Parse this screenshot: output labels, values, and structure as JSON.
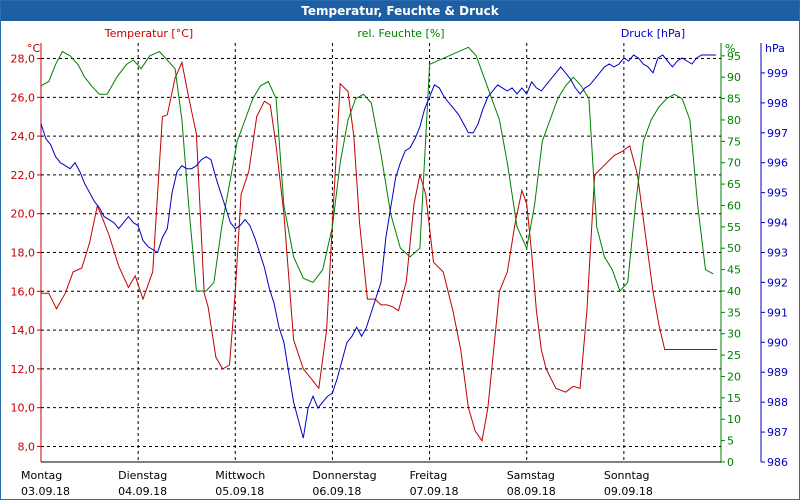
{
  "window": {
    "title": "Temperatur, Feuchte & Druck"
  },
  "colors": {
    "temperature": "#c00000",
    "humidity": "#008000",
    "pressure": "#0000c0",
    "grid": "#000000",
    "titlebar": "#1e5fa3"
  },
  "chart_data": {
    "type": "line",
    "grid": true,
    "x_days": [
      {
        "day": "Montag",
        "date": "03.09.18"
      },
      {
        "day": "Dienstag",
        "date": "04.09.18"
      },
      {
        "day": "Mittwoch",
        "date": "05.09.18"
      },
      {
        "day": "Donnerstag",
        "date": "06.09.18"
      },
      {
        "day": "Freitag",
        "date": "07.09.18"
      },
      {
        "day": "Samstag",
        "date": "08.09.18"
      },
      {
        "day": "Sonntag",
        "date": "09.09.18"
      }
    ],
    "axes": {
      "temperature": {
        "label": "Temperatur [°C]",
        "unit": "°C",
        "ylim": [
          7.2,
          28.8
        ],
        "ticks": [
          "8,0",
          "10,0",
          "12,0",
          "14,0",
          "16,0",
          "18,0",
          "20,0",
          "22,0",
          "24,0",
          "26,0",
          "28,0"
        ]
      },
      "humidity": {
        "label": "rel. Feuchte [%]",
        "unit": "%",
        "ylim": [
          0,
          98
        ],
        "ticks": [
          "0",
          "5",
          "10",
          "15",
          "20",
          "25",
          "30",
          "35",
          "40",
          "45",
          "50",
          "55",
          "60",
          "65",
          "70",
          "75",
          "80",
          "85",
          "90",
          "95"
        ]
      },
      "pressure": {
        "label": "Druck [hPa]",
        "unit": "hPa",
        "ylim": [
          986,
          1000
        ],
        "ticks": [
          "986",
          "987",
          "988",
          "989",
          "990",
          "991",
          "992",
          "993",
          "994",
          "995",
          "996",
          "997",
          "998",
          "999"
        ]
      }
    },
    "x_range_days": [
      0,
      7
    ],
    "series": [
      {
        "name": "Temperatur [°C]",
        "axis": "temperature",
        "x": [
          0,
          0.08,
          0.16,
          0.25,
          0.33,
          0.42,
          0.5,
          0.58,
          0.63,
          0.7,
          0.8,
          0.9,
          0.97,
          1.05,
          1.15,
          1.25,
          1.3,
          1.38,
          1.45,
          1.52,
          1.6,
          1.68,
          1.72,
          1.8,
          1.87,
          1.94,
          2.0,
          2.06,
          2.14,
          2.22,
          2.3,
          2.36,
          2.42,
          2.5,
          2.6,
          2.7,
          2.78,
          2.86,
          2.94,
          3.0,
          3.08,
          3.16,
          3.22,
          3.28,
          3.36,
          3.44,
          3.5,
          3.56,
          3.62,
          3.68,
          3.76,
          3.84,
          3.9,
          3.96,
          4.04,
          4.14,
          4.24,
          4.32,
          4.4,
          4.47,
          4.54,
          4.6,
          4.66,
          4.72,
          4.8,
          4.88,
          4.95,
          5.0,
          5.05,
          5.1,
          5.15,
          5.2,
          5.3,
          5.4,
          5.48,
          5.55,
          5.62,
          5.7,
          5.8,
          5.9,
          5.98,
          6.06,
          6.14,
          6.22,
          6.3,
          6.36,
          6.42,
          6.48,
          6.56,
          6.62,
          6.7,
          6.75,
          6.82,
          6.9,
          6.96
        ],
        "values": [
          15.9,
          15.9,
          15.1,
          15.9,
          17.0,
          17.2,
          18.5,
          20.4,
          19.8,
          18.9,
          17.3,
          16.2,
          16.8,
          15.6,
          17.0,
          25.0,
          25.1,
          27.0,
          27.8,
          26.0,
          24.1,
          15.9,
          15.2,
          12.6,
          12.0,
          12.2,
          16.0,
          21.0,
          22.2,
          25.0,
          25.8,
          25.6,
          23.5,
          20.0,
          13.5,
          12.0,
          11.5,
          11.0,
          14.0,
          19.5,
          26.7,
          26.3,
          24.0,
          19.5,
          15.6,
          15.6,
          15.3,
          15.3,
          15.2,
          15.0,
          16.5,
          20.5,
          22.0,
          21.0,
          17.5,
          17.0,
          15.0,
          13.0,
          10.0,
          8.8,
          8.3,
          10.0,
          13.0,
          16.0,
          17.0,
          19.5,
          21.2,
          20.5,
          18.0,
          15.0,
          13.0,
          12.0,
          11.0,
          10.8,
          11.1,
          11.0,
          15.0,
          22.0,
          22.5,
          23.0,
          23.2,
          23.5,
          22.0,
          19.0,
          16.0,
          14.3,
          13.0,
          13.0,
          13.0,
          13.0,
          13.0,
          13.0,
          13.0,
          13.0,
          13.0
        ]
      },
      {
        "name": "rel. Feuchte [%]",
        "axis": "humidity",
        "x": [
          0,
          0.08,
          0.15,
          0.22,
          0.3,
          0.38,
          0.45,
          0.52,
          0.6,
          0.68,
          0.78,
          0.88,
          0.95,
          1.03,
          1.12,
          1.22,
          1.3,
          1.38,
          1.45,
          1.52,
          1.6,
          1.7,
          1.78,
          1.86,
          1.94,
          2.02,
          2.1,
          2.18,
          2.26,
          2.34,
          2.42,
          2.5,
          2.6,
          2.7,
          2.8,
          2.9,
          3.0,
          3.08,
          3.16,
          3.24,
          3.32,
          3.4,
          3.5,
          3.6,
          3.7,
          3.8,
          3.9,
          4.0,
          4.1,
          4.2,
          4.3,
          4.4,
          4.48,
          4.56,
          4.64,
          4.72,
          4.8,
          4.9,
          5.0,
          5.08,
          5.16,
          5.24,
          5.32,
          5.4,
          5.48,
          5.56,
          5.64,
          5.72,
          5.8,
          5.88,
          5.96,
          6.04,
          6.12,
          6.2,
          6.28,
          6.36,
          6.44,
          6.52,
          6.6,
          6.68,
          6.76,
          6.84,
          6.92
        ],
        "values": [
          88,
          89,
          93,
          96,
          95,
          93,
          90,
          88,
          86,
          86,
          90,
          93,
          94,
          92,
          95,
          96,
          94,
          92,
          80,
          60,
          40,
          40,
          42,
          55,
          65,
          75,
          80,
          85,
          88,
          89,
          85,
          60,
          48,
          43,
          42,
          45,
          55,
          70,
          80,
          85,
          86,
          84,
          72,
          58,
          50,
          48,
          50,
          93,
          94,
          95,
          96,
          97,
          95,
          90,
          85,
          80,
          70,
          55,
          50,
          60,
          75,
          80,
          85,
          88,
          90,
          88,
          85,
          55,
          48,
          45,
          40,
          42,
          60,
          75,
          80,
          83,
          85,
          86,
          85,
          80,
          60,
          45,
          44
        ]
      },
      {
        "name": "Druck [hPa]",
        "axis": "pressure",
        "x": [
          0,
          0.05,
          0.1,
          0.15,
          0.2,
          0.25,
          0.3,
          0.35,
          0.4,
          0.45,
          0.5,
          0.55,
          0.6,
          0.65,
          0.7,
          0.75,
          0.8,
          0.85,
          0.9,
          0.95,
          1.0,
          1.05,
          1.1,
          1.15,
          1.2,
          1.25,
          1.3,
          1.35,
          1.4,
          1.45,
          1.5,
          1.55,
          1.6,
          1.65,
          1.7,
          1.75,
          1.8,
          1.85,
          1.9,
          1.95,
          2.0,
          2.05,
          2.1,
          2.15,
          2.2,
          2.25,
          2.3,
          2.35,
          2.4,
          2.45,
          2.5,
          2.55,
          2.6,
          2.65,
          2.7,
          2.75,
          2.8,
          2.85,
          2.9,
          2.95,
          3.0,
          3.05,
          3.1,
          3.15,
          3.2,
          3.25,
          3.3,
          3.35,
          3.4,
          3.45,
          3.5,
          3.55,
          3.6,
          3.65,
          3.7,
          3.75,
          3.8,
          3.85,
          3.9,
          3.95,
          4.0,
          4.05,
          4.1,
          4.15,
          4.2,
          4.25,
          4.3,
          4.35,
          4.4,
          4.45,
          4.5,
          4.55,
          4.6,
          4.65,
          4.7,
          4.75,
          4.8,
          4.85,
          4.9,
          4.95,
          5.0,
          5.05,
          5.1,
          5.15,
          5.2,
          5.25,
          5.3,
          5.35,
          5.4,
          5.45,
          5.5,
          5.55,
          5.6,
          5.65,
          5.7,
          5.75,
          5.8,
          5.85,
          5.9,
          5.95,
          6.0,
          6.05,
          6.1,
          6.15,
          6.2,
          6.25,
          6.3,
          6.35,
          6.4,
          6.45,
          6.5,
          6.55,
          6.6,
          6.65,
          6.7,
          6.75,
          6.8,
          6.85,
          6.9,
          6.95
        ],
        "values": [
          997.3,
          996.8,
          996.6,
          996.2,
          996.0,
          995.9,
          995.8,
          996.0,
          995.7,
          995.3,
          995.0,
          994.7,
          994.5,
          994.2,
          994.1,
          994.0,
          993.8,
          994.0,
          994.2,
          994.0,
          993.9,
          993.4,
          993.2,
          993.1,
          993.0,
          993.5,
          993.8,
          995.0,
          995.7,
          995.9,
          995.8,
          995.8,
          995.9,
          996.1,
          996.2,
          996.1,
          995.5,
          995.0,
          994.5,
          994.0,
          993.8,
          993.9,
          994.1,
          993.9,
          993.5,
          993.0,
          992.5,
          991.8,
          991.3,
          990.5,
          990.0,
          989.0,
          988.0,
          987.4,
          986.8,
          987.8,
          988.2,
          987.8,
          988.0,
          988.2,
          988.3,
          988.8,
          989.4,
          990.0,
          990.2,
          990.5,
          990.2,
          990.5,
          991.0,
          991.5,
          992.0,
          993.5,
          994.5,
          995.5,
          996.0,
          996.4,
          996.5,
          996.8,
          997.2,
          997.8,
          998.2,
          998.6,
          998.5,
          998.2,
          998.0,
          997.8,
          997.6,
          997.3,
          997.0,
          997.0,
          997.3,
          997.8,
          998.2,
          998.4,
          998.6,
          998.5,
          998.4,
          998.5,
          998.3,
          998.5,
          998.3,
          998.7,
          998.5,
          998.4,
          998.6,
          998.8,
          999.0,
          999.2,
          999.0,
          998.8,
          998.5,
          998.3,
          998.5,
          998.6,
          998.8,
          999.0,
          999.2,
          999.3,
          999.2,
          999.3,
          999.5,
          999.4,
          999.6,
          999.5,
          999.3,
          999.2,
          999.0,
          999.5,
          999.6,
          999.4,
          999.2,
          999.4,
          999.5,
          999.4,
          999.3,
          999.5,
          999.6,
          999.6,
          999.6,
          999.6
        ]
      }
    ]
  }
}
